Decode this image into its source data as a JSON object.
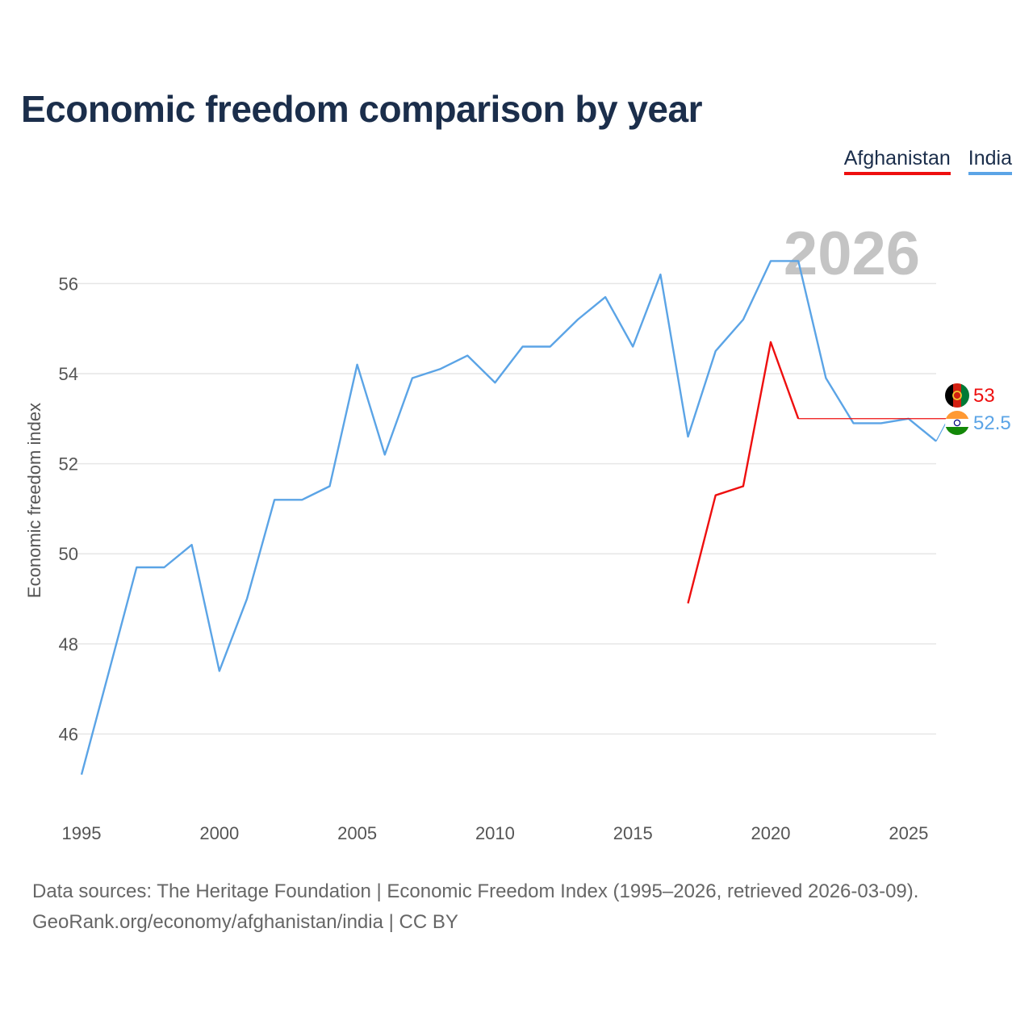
{
  "title": "Economic freedom comparison by year",
  "colors": {
    "afghanistan": "#ee0f0f",
    "india": "#5ba4e6",
    "grid": "#e6e6e6"
  },
  "chart_data": {
    "type": "line",
    "title": "Economic freedom comparison by year",
    "xlabel": "",
    "ylabel": "Economic freedom index",
    "xlim": [
      1995,
      2026
    ],
    "ylim": [
      44.2,
      57.6
    ],
    "x_ticks": [
      "1995",
      "2000",
      "2005",
      "2010",
      "2015",
      "2020",
      "2025"
    ],
    "y_ticks": [
      "46",
      "48",
      "50",
      "52",
      "54",
      "56"
    ],
    "watermark_year": "2026",
    "legend_position": "top-right",
    "series": [
      {
        "name": "Afghanistan",
        "key": "afghanistan",
        "end_label": "53",
        "end_value": 53,
        "flag": "flag-afghanistan",
        "x": [
          2017,
          2018,
          2019,
          2020,
          2021
        ],
        "values": [
          48.9,
          51.3,
          51.5,
          54.7,
          53.0
        ]
      },
      {
        "name": "India",
        "key": "india",
        "end_label": "52.5",
        "end_value": 52.5,
        "flag": "flag-india",
        "x": [
          1995,
          1996,
          1997,
          1998,
          1999,
          2000,
          2001,
          2002,
          2003,
          2004,
          2005,
          2006,
          2007,
          2008,
          2009,
          2010,
          2011,
          2012,
          2013,
          2014,
          2015,
          2016,
          2017,
          2018,
          2019,
          2020,
          2021,
          2022,
          2023,
          2024,
          2025,
          2026
        ],
        "values": [
          45.1,
          47.4,
          49.7,
          49.7,
          50.2,
          47.4,
          49.0,
          51.2,
          51.2,
          51.5,
          54.2,
          52.2,
          53.9,
          54.1,
          54.4,
          53.8,
          54.6,
          54.6,
          55.2,
          55.7,
          54.6,
          56.2,
          52.6,
          54.5,
          55.2,
          56.5,
          56.5,
          53.9,
          52.9,
          52.9,
          53.0,
          52.5
        ]
      }
    ]
  },
  "footer": {
    "line1": "Data sources: The Heritage Foundation | Economic Freedom Index (1995–2026, retrieved 2026-03-09).",
    "line2": "GeoRank.org/economy/afghanistan/india | CC BY"
  }
}
